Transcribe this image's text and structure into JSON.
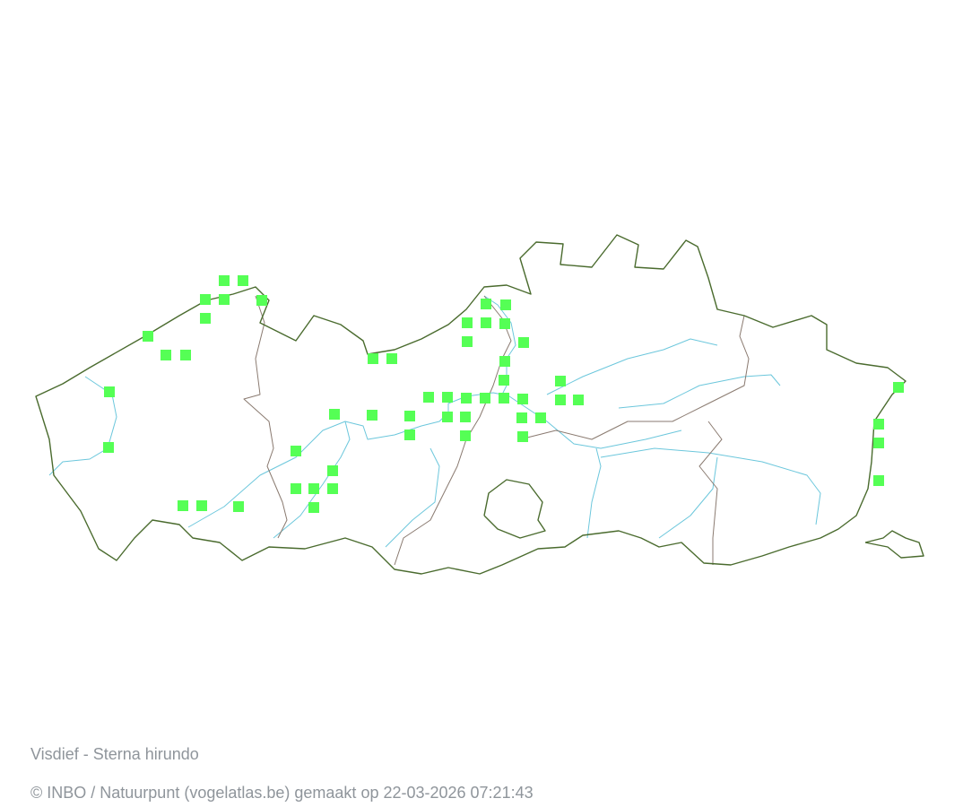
{
  "map": {
    "species_title": "Visdief - Sterna hirundo",
    "credit": "© INBO / Natuurpunt (vogelatlas.be) gemaakt op 22-03-2026 07:21:43",
    "colors": {
      "presence_square": "#55ff55",
      "region_border": "#4a6b2e",
      "province_border": "#8a7a70",
      "river": "#6cc7dc"
    }
  }
}
